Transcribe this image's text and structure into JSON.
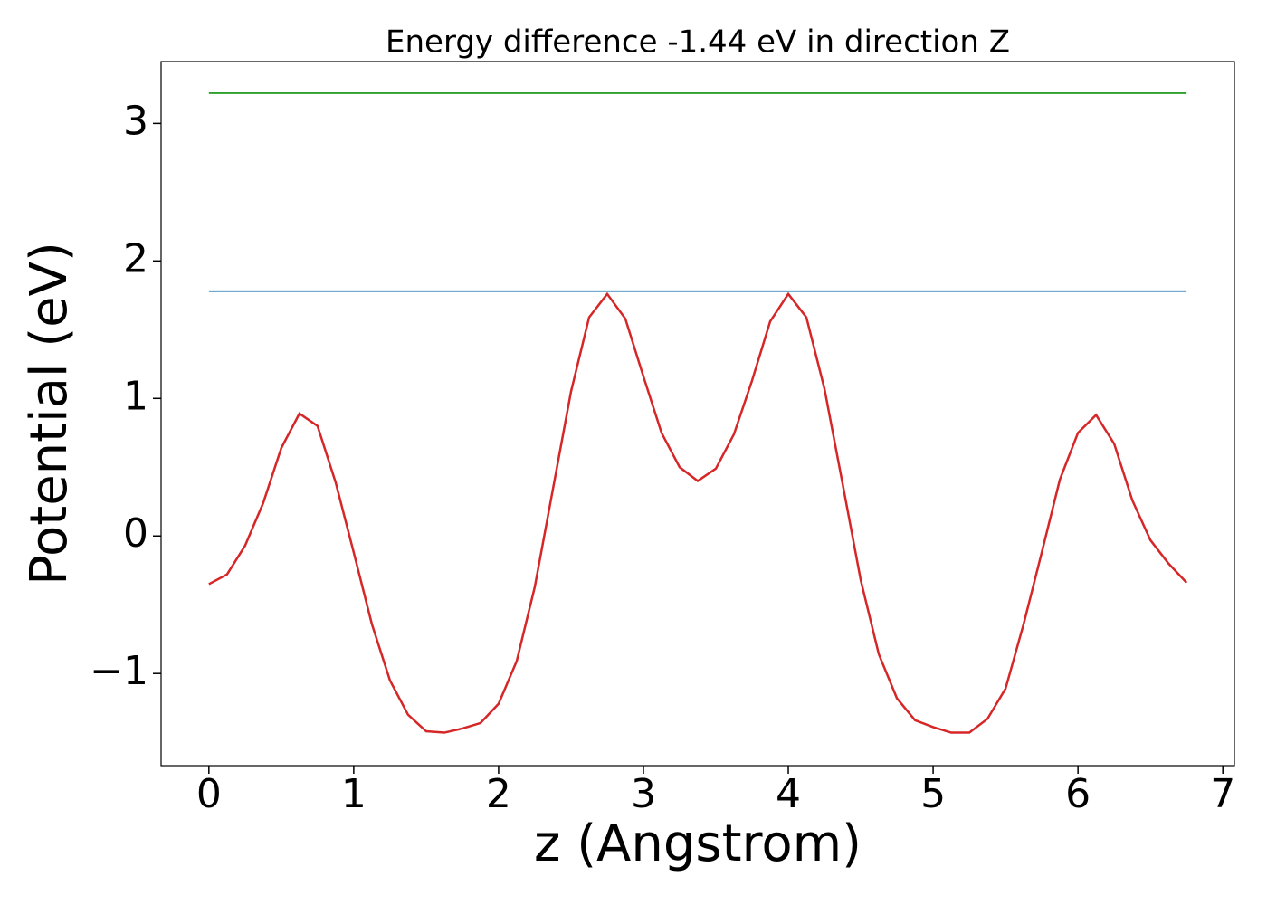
{
  "chart_data": {
    "type": "line",
    "title": "Energy difference -1.44 eV in direction Z",
    "xlabel": "z (Angstrom)",
    "ylabel": "Potential (eV)",
    "xlim": [
      -0.33,
      7.08
    ],
    "ylim": [
      -1.67,
      3.45
    ],
    "xticks": [
      0,
      1,
      2,
      3,
      4,
      5,
      6,
      7
    ],
    "yticks": [
      {
        "value": -1,
        "label": "−1"
      },
      0,
      1,
      2,
      3
    ],
    "series": [
      {
        "color": "#d62728",
        "x": [
          0,
          0.125,
          0.25,
          0.375,
          0.5,
          0.625,
          0.75,
          0.875,
          1.0,
          1.125,
          1.25,
          1.375,
          1.5,
          1.625,
          1.75,
          1.875,
          2.0,
          2.125,
          2.25,
          2.375,
          2.5,
          2.625,
          2.75,
          2.875,
          3.0,
          3.125,
          3.25,
          3.375,
          3.5,
          3.625,
          3.75,
          3.875,
          4.0,
          4.125,
          4.25,
          4.375,
          4.5,
          4.625,
          4.75,
          4.875,
          5.0,
          5.125,
          5.25,
          5.375,
          5.5,
          5.625,
          5.75,
          5.875,
          6.0,
          6.125,
          6.25,
          6.375,
          6.5,
          6.625,
          6.75
        ],
        "values": [
          -0.35,
          -0.28,
          -0.07,
          0.24,
          0.64,
          0.89,
          0.8,
          0.39,
          -0.12,
          -0.64,
          -1.05,
          -1.3,
          -1.42,
          -1.43,
          -1.4,
          -1.36,
          -1.22,
          -0.91,
          -0.37,
          0.34,
          1.05,
          1.59,
          1.76,
          1.58,
          1.16,
          0.75,
          0.5,
          0.4,
          0.49,
          0.74,
          1.13,
          1.56,
          1.76,
          1.59,
          1.07,
          0.38,
          -0.32,
          -0.86,
          -1.18,
          -1.34,
          -1.39,
          -1.43,
          -1.43,
          -1.33,
          -1.11,
          -0.64,
          -0.12,
          0.41,
          0.75,
          0.88,
          0.67,
          0.26,
          -0.03,
          -0.2,
          -0.34
        ]
      },
      {
        "color": "#1f77b4",
        "x": [
          0,
          6.75
        ],
        "values": [
          1.78,
          1.78
        ]
      },
      {
        "color": "#2ca02c",
        "x": [
          0,
          6.75
        ],
        "values": [
          3.22,
          3.22
        ]
      }
    ]
  }
}
